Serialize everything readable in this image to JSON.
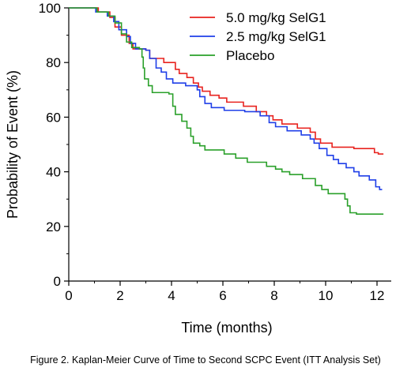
{
  "caption": "Figure 2. Kaplan-Meier Curve of Time to Second SCPC Event (ITT Analysis Set)",
  "chart_data": {
    "type": "line",
    "title": "",
    "xlabel": "Time (months)",
    "ylabel": "Probability of Event (%)",
    "xlim": [
      0,
      12.4
    ],
    "ylim": [
      0,
      100
    ],
    "x_ticks": [
      "0",
      "2",
      "4",
      "6",
      "8",
      "10",
      "12"
    ],
    "y_ticks": [
      "0",
      "20",
      "40",
      "60",
      "80",
      "100"
    ],
    "grid": false,
    "legend_position": "top-right",
    "step": true,
    "series": [
      {
        "name": "5.0 mg/kg SelG1",
        "color": "#e8231f",
        "points": [
          [
            0,
            100
          ],
          [
            1.15,
            98.5
          ],
          [
            1.6,
            96.5
          ],
          [
            1.8,
            93
          ],
          [
            2.05,
            90
          ],
          [
            2.35,
            87
          ],
          [
            2.5,
            85
          ],
          [
            3.0,
            84.5
          ],
          [
            3.15,
            81.5
          ],
          [
            3.7,
            80
          ],
          [
            4.15,
            77.5
          ],
          [
            4.3,
            76
          ],
          [
            4.6,
            74.5
          ],
          [
            4.85,
            72.5
          ],
          [
            5.05,
            71
          ],
          [
            5.2,
            69.5
          ],
          [
            5.5,
            68
          ],
          [
            5.85,
            67
          ],
          [
            6.15,
            65.5
          ],
          [
            6.8,
            64
          ],
          [
            7.3,
            62
          ],
          [
            7.7,
            60.5
          ],
          [
            7.95,
            59
          ],
          [
            8.3,
            57.5
          ],
          [
            8.9,
            56
          ],
          [
            9.4,
            54.5
          ],
          [
            9.6,
            52
          ],
          [
            9.8,
            50.5
          ],
          [
            10.25,
            49
          ],
          [
            11.1,
            48.5
          ],
          [
            11.9,
            47
          ],
          [
            12.05,
            46.5
          ],
          [
            12.25,
            46.5
          ]
        ]
      },
      {
        "name": "2.5 mg/kg SelG1",
        "color": "#1f3fe8",
        "points": [
          [
            0,
            100
          ],
          [
            1.05,
            98.5
          ],
          [
            1.5,
            97
          ],
          [
            1.75,
            95
          ],
          [
            1.95,
            92
          ],
          [
            2.25,
            89.5
          ],
          [
            2.4,
            87
          ],
          [
            2.6,
            85
          ],
          [
            3.0,
            84.5
          ],
          [
            3.15,
            81.5
          ],
          [
            3.4,
            78
          ],
          [
            3.6,
            76.5
          ],
          [
            3.8,
            74
          ],
          [
            4.05,
            72.5
          ],
          [
            4.55,
            71.5
          ],
          [
            5.0,
            70
          ],
          [
            5.1,
            67.5
          ],
          [
            5.3,
            65
          ],
          [
            5.55,
            63.5
          ],
          [
            6.05,
            62.5
          ],
          [
            6.85,
            62
          ],
          [
            7.45,
            60.5
          ],
          [
            7.8,
            58
          ],
          [
            8.05,
            56.5
          ],
          [
            8.5,
            55
          ],
          [
            9.05,
            53.5
          ],
          [
            9.4,
            52
          ],
          [
            9.55,
            50.5
          ],
          [
            9.75,
            48.5
          ],
          [
            10.05,
            46
          ],
          [
            10.3,
            44.5
          ],
          [
            10.5,
            43
          ],
          [
            10.8,
            41.5
          ],
          [
            11.1,
            40
          ],
          [
            11.3,
            38.5
          ],
          [
            11.7,
            37
          ],
          [
            11.95,
            34.5
          ],
          [
            12.1,
            33.5
          ],
          [
            12.2,
            33.5
          ]
        ]
      },
      {
        "name": "Placebo",
        "color": "#2aa02a",
        "points": [
          [
            0,
            100
          ],
          [
            1.1,
            98.5
          ],
          [
            1.55,
            97
          ],
          [
            1.8,
            94.5
          ],
          [
            2.05,
            90.5
          ],
          [
            2.25,
            87.5
          ],
          [
            2.45,
            85.5
          ],
          [
            2.75,
            85
          ],
          [
            2.85,
            82
          ],
          [
            2.9,
            78
          ],
          [
            2.95,
            74
          ],
          [
            3.1,
            71.5
          ],
          [
            3.25,
            69
          ],
          [
            3.9,
            68.5
          ],
          [
            4.05,
            64
          ],
          [
            4.15,
            61
          ],
          [
            4.4,
            58.5
          ],
          [
            4.6,
            56
          ],
          [
            4.75,
            53
          ],
          [
            4.85,
            50.5
          ],
          [
            5.1,
            49.5
          ],
          [
            5.3,
            48
          ],
          [
            6.05,
            46.5
          ],
          [
            6.5,
            45
          ],
          [
            6.95,
            43.5
          ],
          [
            7.7,
            42
          ],
          [
            8.05,
            41
          ],
          [
            8.3,
            40
          ],
          [
            8.6,
            39
          ],
          [
            9.1,
            37.5
          ],
          [
            9.6,
            35
          ],
          [
            9.85,
            33.5
          ],
          [
            10.1,
            32
          ],
          [
            10.75,
            30
          ],
          [
            10.85,
            27.5
          ],
          [
            10.95,
            25
          ],
          [
            11.2,
            24.5
          ],
          [
            12.25,
            24.5
          ]
        ]
      }
    ]
  }
}
